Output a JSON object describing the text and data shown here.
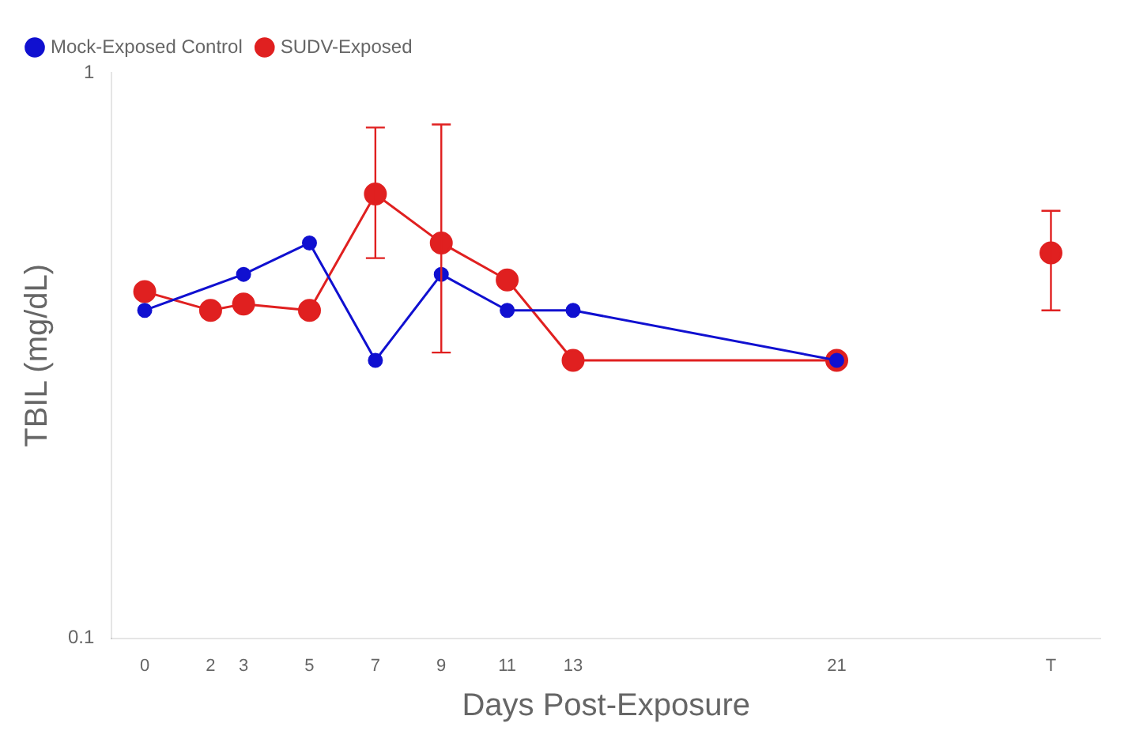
{
  "chart_data": {
    "type": "line",
    "xlabel": "Days Post-Exposure",
    "ylabel": "TBIL (mg/dL)",
    "log": "y",
    "ylim": [
      0.1,
      1
    ],
    "yticks": [
      0.1,
      1
    ],
    "xlim": [
      -1,
      29
    ],
    "xticks": [
      0,
      2,
      3,
      5,
      7,
      9,
      11,
      13,
      21,
      {
        "value": 27.5,
        "label": "T"
      }
    ],
    "grid": false,
    "legend": "top left",
    "marker": "circle",
    "line_style": "solid",
    "series": [
      {
        "name": "SUDV-Exposed",
        "color": "#e02020",
        "x": [
          0,
          2,
          3,
          5,
          7,
          9,
          11,
          13,
          21
        ],
        "values": [
          0.41,
          0.38,
          0.39,
          0.38,
          0.61,
          0.5,
          0.43,
          0.31,
          0.31
        ],
        "errors": [
          null,
          null,
          null,
          null,
          [
            0.47,
            0.8
          ],
          [
            0.32,
            0.81
          ],
          null,
          null,
          null
        ]
      },
      {
        "name": "Mock-Exposed Control",
        "color": "#1010d0",
        "x": [
          0,
          3,
          5,
          7,
          9,
          11,
          13,
          21
        ],
        "values": [
          0.38,
          0.44,
          0.5,
          0.31,
          0.44,
          0.38,
          0.38,
          0.31
        ]
      },
      {
        "type": "scatter",
        "color": "#e02020",
        "x": [
          27.5
        ],
        "values": [
          0.48
        ],
        "errors": [
          [
            0.38,
            0.57
          ]
        ]
      }
    ]
  }
}
